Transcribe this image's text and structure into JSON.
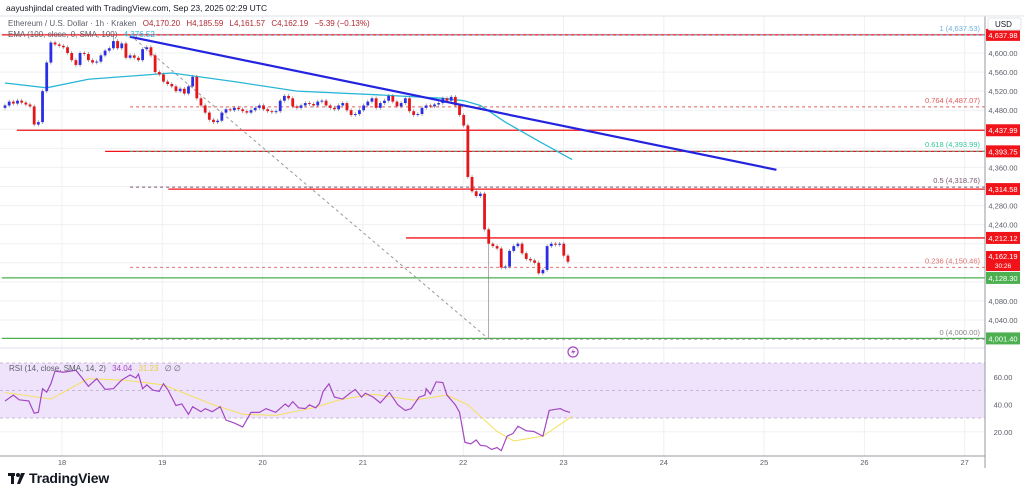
{
  "attribution": "aayushjindal created with TradingView.com, Sep 23, 2025 02:29 UTC",
  "legend": {
    "symbol": "Ethereum / U.S. Dollar · 1h · Kraken",
    "open": "O4,170.20",
    "high": "H4,185.59",
    "low": "L4,161.57",
    "close": "C4,162.19",
    "change": "−5.39 (−0.13%)",
    "ema_label": "EMA (100, close, 0, SMA, 100)",
    "ema_value": "4,376.52"
  },
  "currency_button": "USD",
  "colors": {
    "up": "#2a2ee6",
    "down": "#e5161a",
    "trendline": "#2424e0",
    "ema": "#29b6d6",
    "resistance": "#f0141a",
    "support": "#4caf50",
    "rsi": "#a347c2",
    "rsi_sma": "#f5e05a",
    "rsi_band": "#efe3fb"
  },
  "price_axis": {
    "ticks": [
      "4,600.00",
      "4,560.00",
      "4,520.00",
      "4,480.00",
      "4,360.00",
      "4,280.00",
      "4,240.00",
      "4,080.00",
      "4,040.00"
    ],
    "tick_values": [
      4600,
      4560,
      4520,
      4480,
      4360,
      4280,
      4240,
      4080,
      4040
    ],
    "last_price": "4,162.19",
    "countdown": "30:26"
  },
  "time_axis": {
    "ticks": [
      "18",
      "19",
      "20",
      "21",
      "22",
      "23",
      "24",
      "25",
      "26",
      "27"
    ]
  },
  "levels": [
    {
      "label": "4,637.98",
      "value": 4637.98,
      "kind": "resistance",
      "from_day": 17.4
    },
    {
      "label": "4,437.99",
      "value": 4437.99,
      "kind": "resistance",
      "from_day": 17.55
    },
    {
      "label": "4,393.75",
      "value": 4393.75,
      "kind": "resistance",
      "from_day": 18.43
    },
    {
      "label": "4,314.58",
      "value": 4314.58,
      "kind": "resistance",
      "from_day": 19.06
    },
    {
      "label": "4,212.12",
      "value": 4212.12,
      "kind": "resistance",
      "from_day": 21.43
    },
    {
      "label": "4,128.30",
      "value": 4128.3,
      "kind": "support",
      "from_day": 17.4
    },
    {
      "label": "4,001.40",
      "value": 4001.4,
      "kind": "support",
      "from_day": 17.4
    }
  ],
  "fibonacci": [
    {
      "label": "1 (4,637.53)",
      "value": 4637.53,
      "color": "#6bb0dc"
    },
    {
      "label": "0.764 (4,487.07)",
      "value": 4487.07,
      "color": "#e05a5a"
    },
    {
      "label": "0.618 (4,393.99)",
      "value": 4393.99,
      "color": "#35c49c"
    },
    {
      "label": "0.5 (4,318.76)",
      "value": 4318.76,
      "color": "#7a5870"
    },
    {
      "label": "0.236 (4,150.46)",
      "value": 4150.46,
      "color": "#e07070"
    },
    {
      "label": "0 (4,000.00)",
      "value": 4000.0,
      "color": "#888888"
    }
  ],
  "rsi_legend": {
    "label": "RSI (14, close, SMA, 14, 2)",
    "value": "34.04",
    "sma_value": "31.23",
    "extra": "∅ ∅"
  },
  "rsi_axis": {
    "ticks": [
      "60.00",
      "40.00",
      "20.00"
    ],
    "tick_values": [
      60,
      40,
      20
    ]
  },
  "footer_brand": "TradingView",
  "chart_data": {
    "type": "candlestick",
    "timeframe": "1h",
    "ylim": [
      4000,
      4650
    ],
    "x_range_days": [
      "17",
      "27"
    ],
    "closes": [
      4490,
      4498,
      4494,
      4500,
      4496,
      4492,
      4488,
      4450,
      4455,
      4520,
      4580,
      4622,
      4618,
      4615,
      4612,
      4600,
      4585,
      4575,
      4600,
      4598,
      4585,
      4580,
      4582,
      4595,
      4605,
      4610,
      4625,
      4610,
      4620,
      4590,
      4595,
      4590,
      4585,
      4608,
      4612,
      4595,
      4560,
      4555,
      4540,
      4535,
      4530,
      4520,
      4525,
      4515,
      4530,
      4550,
      4505,
      4490,
      4475,
      4460,
      4455,
      4458,
      4475,
      4482,
      4480,
      4485,
      4482,
      4478,
      4475,
      4480,
      4485,
      4490,
      4482,
      4478,
      4476,
      4478,
      4500,
      4510,
      4505,
      4488,
      4485,
      4490,
      4495,
      4493,
      4490,
      4498,
      4500,
      4490,
      4485,
      4482,
      4490,
      4495,
      4480,
      4470,
      4472,
      4480,
      4490,
      4498,
      4505,
      4485,
      4495,
      4500,
      4510,
      4498,
      4488,
      4495,
      4505,
      4478,
      4470,
      4472,
      4485,
      4490,
      4488,
      4492,
      4495,
      4505,
      4500,
      4508,
      4490,
      4470,
      4448,
      4340,
      4310,
      4300,
      4305,
      4230,
      4200,
      4195,
      4190,
      4150,
      4152,
      4185,
      4195,
      4200,
      4180,
      4168,
      4165,
      4160,
      4138,
      4145,
      4195,
      4200,
      4198,
      4200,
      4175,
      4162.19
    ],
    "first_open": 4485,
    "notable_wicks": [
      {
        "bar": 26,
        "high": 4637.53
      },
      {
        "bar": 116,
        "low": 4000.0
      }
    ],
    "ema100": [
      [
        0,
        4537
      ],
      [
        10,
        4527
      ],
      [
        20,
        4545
      ],
      [
        40,
        4558
      ],
      [
        55,
        4540
      ],
      [
        70,
        4520
      ],
      [
        90,
        4512
      ],
      [
        105,
        4505
      ],
      [
        110,
        4500
      ],
      [
        114,
        4490
      ],
      [
        120,
        4455
      ],
      [
        128,
        4415
      ],
      [
        136,
        4376.52
      ]
    ],
    "trendline": {
      "start": {
        "bar": 30,
        "price": 4634
      },
      "end": {
        "bar": 185,
        "price": 4355
      }
    },
    "fib_anchor": {
      "start": {
        "bar": 30,
        "price": 4637.53
      },
      "end": {
        "bar": 116,
        "price": 4000.0
      }
    },
    "rsi": [
      [
        0,
        42.4
      ],
      [
        2,
        46.6
      ],
      [
        3.4,
        43.2
      ],
      [
        5.7,
        42.4
      ],
      [
        7,
        33.5
      ],
      [
        8,
        34.1
      ],
      [
        9,
        51.3
      ],
      [
        10,
        48.8
      ],
      [
        11,
        54.9
      ],
      [
        12,
        64.1
      ],
      [
        14,
        63.3
      ],
      [
        17,
        64.7
      ],
      [
        18.5,
        59.1
      ],
      [
        20,
        53
      ],
      [
        22,
        58.6
      ],
      [
        24,
        50.8
      ],
      [
        26,
        51.3
      ],
      [
        28,
        57.7
      ],
      [
        30,
        61.3
      ],
      [
        31.4,
        59.1
      ],
      [
        32,
        61.9
      ],
      [
        33,
        51.3
      ],
      [
        34,
        54.1
      ],
      [
        35.5,
        50.2
      ],
      [
        37,
        49.4
      ],
      [
        38,
        54.9
      ],
      [
        39,
        50.8
      ],
      [
        41,
        39.1
      ],
      [
        42.4,
        40.2
      ],
      [
        44,
        32.7
      ],
      [
        45,
        38.2
      ],
      [
        47,
        34.6
      ],
      [
        48,
        36.8
      ],
      [
        49.7,
        34.6
      ],
      [
        51.6,
        38.2
      ],
      [
        53,
        28.5
      ],
      [
        55,
        26.3
      ],
      [
        57,
        23.5
      ],
      [
        59,
        34.1
      ],
      [
        61,
        34.1
      ],
      [
        62.6,
        36.8
      ],
      [
        64.9,
        34.1
      ],
      [
        67.2,
        40.2
      ],
      [
        68,
        38.2
      ],
      [
        69,
        41.9
      ],
      [
        70.4,
        37.4
      ],
      [
        72,
        36.8
      ],
      [
        73,
        39.6
      ],
      [
        74.5,
        37.4
      ],
      [
        75.4,
        40.5
      ],
      [
        76.3,
        49.4
      ],
      [
        77.7,
        54.9
      ],
      [
        79,
        45.2
      ],
      [
        81,
        43.8
      ],
      [
        82.7,
        48
      ],
      [
        84,
        50.8
      ],
      [
        85.5,
        45.2
      ],
      [
        86.4,
        48
      ],
      [
        88.3,
        45.2
      ],
      [
        90,
        41
      ],
      [
        92.2,
        48.5
      ],
      [
        94.2,
        39.6
      ],
      [
        96,
        35.5
      ],
      [
        97.4,
        36.8
      ],
      [
        99.3,
        45.2
      ],
      [
        100.7,
        46.6
      ],
      [
        101,
        51.3
      ],
      [
        102,
        47.4
      ],
      [
        103.4,
        56.3
      ],
      [
        105,
        55.8
      ],
      [
        106,
        46.6
      ],
      [
        108,
        39.6
      ],
      [
        109,
        34.1
      ],
      [
        110.3,
        12.3
      ],
      [
        111.7,
        11.2
      ],
      [
        113,
        14
      ],
      [
        114,
        10.1
      ],
      [
        115.4,
        9.6
      ],
      [
        116.7,
        7.1
      ],
      [
        118,
        8.5
      ],
      [
        119,
        6.2
      ],
      [
        120.4,
        16.8
      ],
      [
        121.8,
        18.7
      ],
      [
        123,
        24
      ],
      [
        125,
        20.7
      ],
      [
        126.8,
        20.2
      ],
      [
        129,
        16.8
      ],
      [
        130.5,
        35.5
      ],
      [
        132,
        36.3
      ],
      [
        133.2,
        36.8
      ],
      [
        134,
        35.5
      ],
      [
        135.5,
        34.04
      ]
    ],
    "rsi_sma": [
      [
        0,
        48.5
      ],
      [
        11,
        43.8
      ],
      [
        20,
        58.6
      ],
      [
        29,
        57.4
      ],
      [
        38,
        54.1
      ],
      [
        50,
        39.6
      ],
      [
        57,
        32.7
      ],
      [
        65,
        31.9
      ],
      [
        74,
        37.4
      ],
      [
        80,
        43
      ],
      [
        88,
        47.4
      ],
      [
        98,
        43
      ],
      [
        106,
        46.6
      ],
      [
        111,
        39.6
      ],
      [
        118,
        20.2
      ],
      [
        122,
        13.3
      ],
      [
        129,
        16.8
      ],
      [
        136,
        31.23
      ]
    ],
    "rsi_band": [
      30,
      70
    ]
  }
}
